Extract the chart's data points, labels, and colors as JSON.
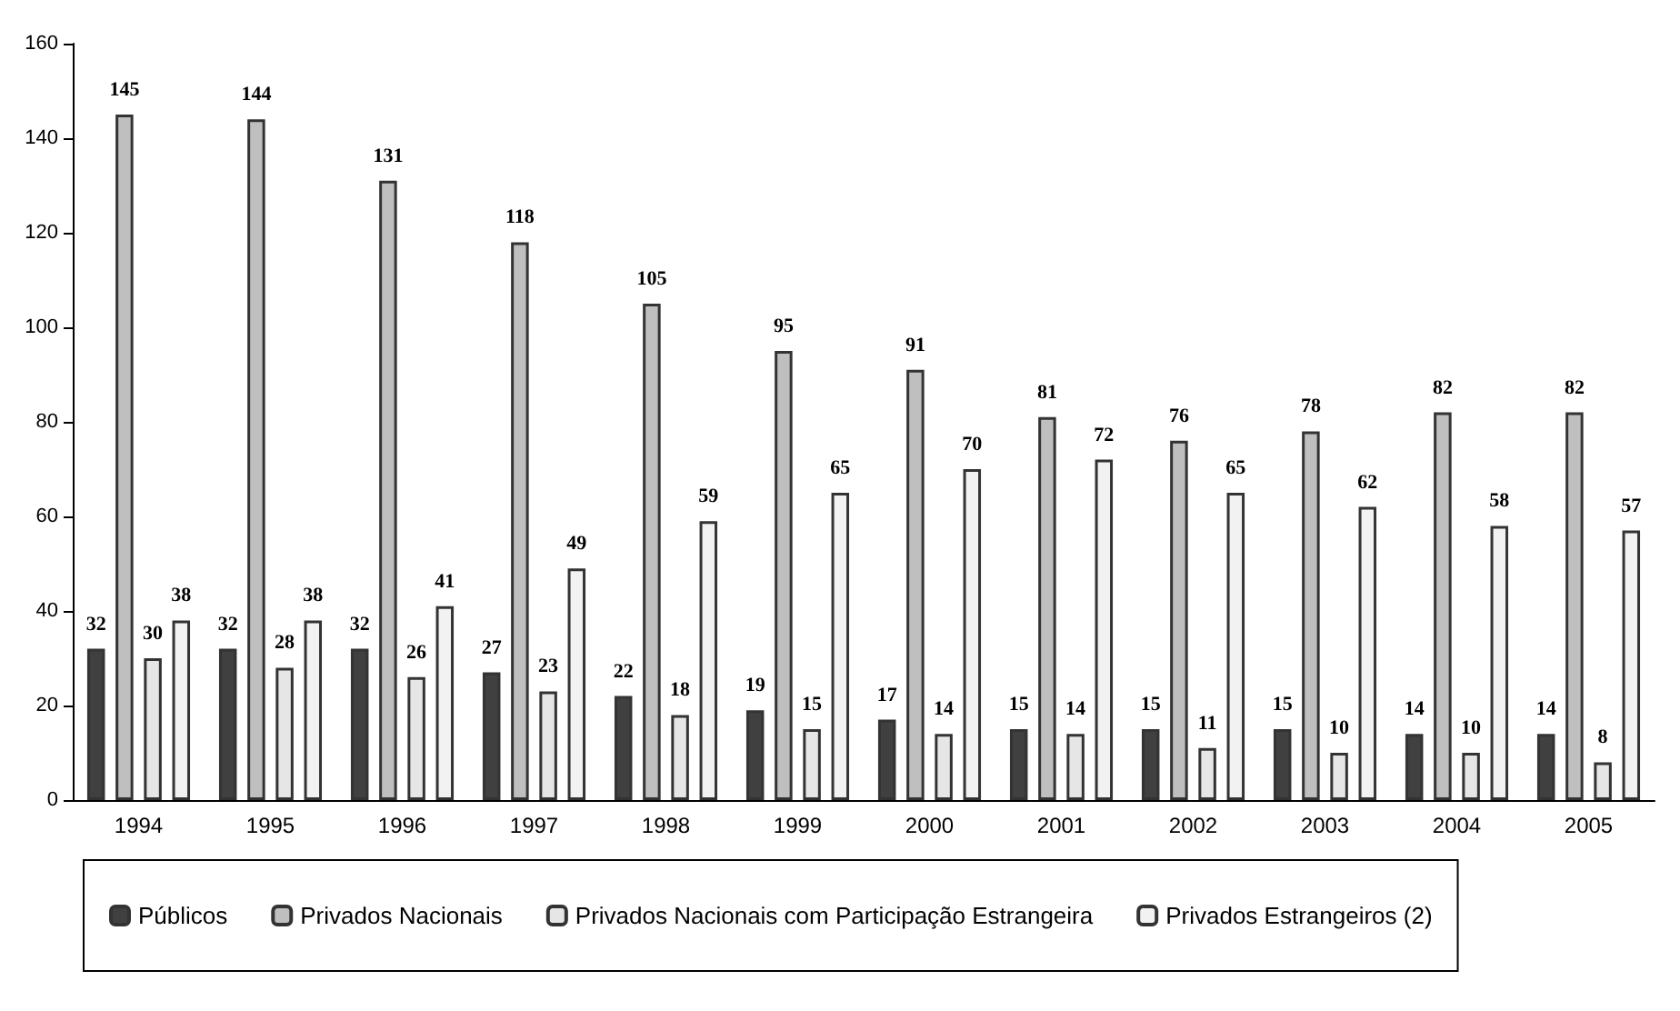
{
  "chart_data": {
    "type": "bar",
    "categories": [
      "1994",
      "1995",
      "1996",
      "1997",
      "1998",
      "1999",
      "2000",
      "2001",
      "2002",
      "2003",
      "2004",
      "2005"
    ],
    "series": [
      {
        "name": "Públicos",
        "color": "#404040",
        "values": [
          32,
          32,
          32,
          27,
          22,
          19,
          17,
          15,
          15,
          15,
          14,
          14
        ]
      },
      {
        "name": "Privados Nacionais",
        "color": "#bfbfbf",
        "values": [
          145,
          144,
          131,
          118,
          105,
          95,
          91,
          81,
          76,
          78,
          82,
          82
        ]
      },
      {
        "name": "Privados Nacionais com Participação Estrangeira",
        "color": "#e6e6e6",
        "values": [
          30,
          28,
          26,
          23,
          18,
          15,
          14,
          14,
          11,
          10,
          10,
          8
        ]
      },
      {
        "name": "Privados Estrangeiros (2)",
        "color": "#f2f2f2",
        "values": [
          38,
          38,
          41,
          49,
          59,
          65,
          70,
          72,
          65,
          62,
          58,
          57
        ]
      }
    ],
    "ylim": [
      0,
      160
    ],
    "yticks": [
      0,
      20,
      40,
      60,
      80,
      100,
      120,
      140,
      160
    ],
    "grid": false,
    "legend": "bottom",
    "data_labels": true
  }
}
